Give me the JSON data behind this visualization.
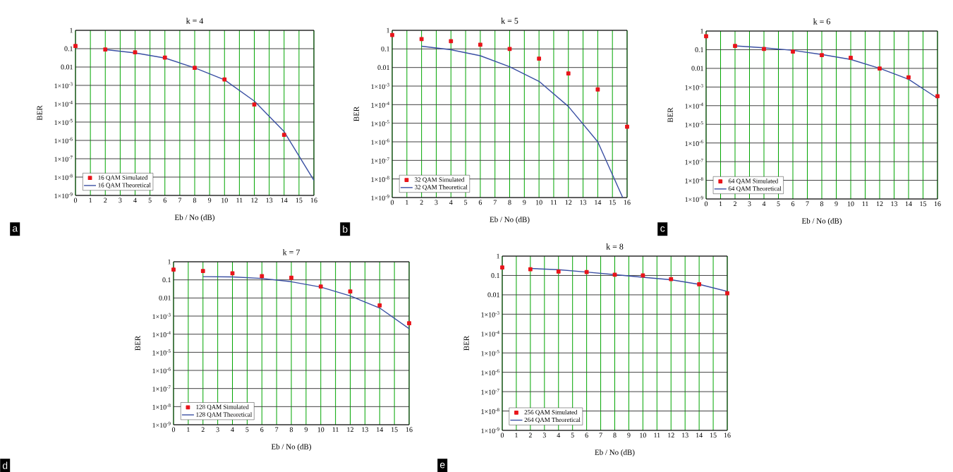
{
  "chart_data": [
    {
      "type": "line",
      "title": "k = 4",
      "xlabel": "Eb / No (dB)",
      "ylabel": "BER",
      "xlim": [
        0,
        16
      ],
      "xticks": [
        0,
        1,
        2,
        3,
        4,
        5,
        6,
        7,
        8,
        9,
        10,
        11,
        12,
        13,
        14,
        15,
        16
      ],
      "ylim": [
        1e-09,
        1
      ],
      "yticks": [
        1,
        0.1,
        0.01,
        {
          "value": 0.001,
          "label": "1×10$^{-3}$"
        },
        {
          "value": 0.0001,
          "label": "1×10$^{-4}$"
        },
        {
          "value": 1e-05,
          "label": "1×10$^{-5}$"
        },
        {
          "value": 1e-06,
          "label": "1×10$^{-6}$"
        },
        {
          "value": 1e-07,
          "label": "1×10$^{-7}$"
        },
        {
          "value": 1e-08,
          "label": "1×10$^{-8}$"
        },
        {
          "value": 1e-09,
          "label": "1×10$^{-9}$"
        }
      ],
      "log": "y",
      "grid": true,
      "legend": "bottom left",
      "annotations": [
        "a"
      ],
      "series": [
        {
          "name": "16 QAM  Simulated",
          "type": "scatter",
          "marker": "square",
          "color": "#e8151b",
          "x": [
            0,
            2,
            4,
            6,
            8,
            10,
            12,
            14
          ],
          "values": [
            0.14,
            0.09,
            0.063,
            0.033,
            0.009,
            0.0021,
            9e-05,
            2e-06
          ]
        },
        {
          "name": "16 QAM  Theoretical",
          "type": "line",
          "marker": "none",
          "color": "#3a4fa3",
          "x": [
            2,
            4,
            6,
            8,
            10,
            12,
            14,
            16
          ],
          "values": [
            0.09,
            0.059,
            0.031,
            0.009,
            0.002,
            0.00014,
            3e-06,
            6.6e-09
          ]
        }
      ]
    },
    {
      "type": "line",
      "title": "k = 5",
      "xlabel": "Eb / No (dB)",
      "ylabel": "BER",
      "xlim": [
        0,
        16
      ],
      "xticks": [
        0,
        1,
        2,
        3,
        4,
        5,
        6,
        7,
        8,
        9,
        10,
        11,
        12,
        13,
        14,
        15,
        16
      ],
      "ylim": [
        1e-09,
        1
      ],
      "yticks": [
        1,
        0.1,
        0.01,
        {
          "value": 0.001,
          "label": "1×10$^{-3}$"
        },
        {
          "value": 0.0001,
          "label": "1×10$^{-4}$"
        },
        {
          "value": 1e-05,
          "label": "1×10$^{-5}$"
        },
        {
          "value": 1e-06,
          "label": "1×10$^{-6}$"
        },
        {
          "value": 1e-07,
          "label": "1×10$^{-7}$"
        },
        {
          "value": 1e-08,
          "label": "1×10$^{-8}$"
        },
        {
          "value": 1e-09,
          "label": "1×10$^{-9}$"
        }
      ],
      "log": "y",
      "grid": true,
      "legend": "bottom left",
      "annotations": [
        "b"
      ],
      "series": [
        {
          "name": "32 QAM  Simulated",
          "type": "scatter",
          "marker": "square",
          "color": "#e8151b",
          "x": [
            0,
            2,
            4,
            6,
            8,
            10,
            12,
            14,
            16
          ],
          "values": [
            0.56,
            0.34,
            0.26,
            0.17,
            0.1,
            0.03,
            0.0048,
            0.00066,
            6.5e-06
          ]
        },
        {
          "name": "32  QAM  Theoretical",
          "type": "line",
          "marker": "none",
          "color": "#3a4fa3",
          "x": [
            2,
            4,
            6,
            8,
            10,
            12,
            14,
            15.7
          ],
          "values": [
            0.14,
            0.09,
            0.043,
            0.011,
            0.0018,
            8e-05,
            1e-06,
            1e-09
          ]
        }
      ]
    },
    {
      "type": "line",
      "title": "k = 6",
      "xlabel": "Eb / No (dB)",
      "ylabel": "BER",
      "xlim": [
        0,
        16
      ],
      "xticks": [
        0,
        1,
        2,
        3,
        4,
        5,
        6,
        7,
        8,
        9,
        10,
        11,
        12,
        13,
        14,
        15,
        16
      ],
      "ylim": [
        1e-09,
        1
      ],
      "yticks": [
        1,
        0.1,
        0.01,
        {
          "value": 0.001,
          "label": "1×10$^{-3}$"
        },
        {
          "value": 0.0001,
          "label": "1×10$^{-4}$"
        },
        {
          "value": 1e-05,
          "label": "1×10$^{-5}$"
        },
        {
          "value": 1e-06,
          "label": "1×10$^{-6}$"
        },
        {
          "value": 1e-07,
          "label": "1×10$^{-7}$"
        },
        {
          "value": 1e-08,
          "label": "1×10$^{-8}$"
        },
        {
          "value": 1e-09,
          "label": "1×10$^{-9}$"
        }
      ],
      "log": "y",
      "grid": true,
      "legend": "bottom left",
      "annotations": [
        "c"
      ],
      "series": [
        {
          "name": "64 QAM  Simulated",
          "type": "scatter",
          "marker": "square",
          "color": "#e8151b",
          "x": [
            0,
            2,
            4,
            6,
            8,
            10,
            12,
            14,
            16
          ],
          "values": [
            0.53,
            0.16,
            0.11,
            0.079,
            0.051,
            0.037,
            0.0098,
            0.0033,
            0.00032
          ]
        },
        {
          "name": "64 QAM  Theoretical",
          "type": "line",
          "marker": "none",
          "color": "#3a4fa3",
          "x": [
            2,
            4,
            6,
            8,
            10,
            12,
            14,
            16
          ],
          "values": [
            0.16,
            0.126,
            0.092,
            0.055,
            0.03,
            0.01,
            0.0026,
            0.00025
          ]
        }
      ]
    },
    {
      "type": "line",
      "title": "k = 7",
      "xlabel": "Eb / No (dB)",
      "ylabel": "BER",
      "xlim": [
        0,
        16
      ],
      "xticks": [
        0,
        1,
        2,
        3,
        4,
        5,
        6,
        7,
        8,
        9,
        10,
        11,
        12,
        13,
        14,
        15,
        16
      ],
      "ylim": [
        1e-09,
        1
      ],
      "yticks": [
        1,
        0.1,
        0.01,
        {
          "value": 0.001,
          "label": "1×10$^{-3}$"
        },
        {
          "value": 0.0001,
          "label": "1×10$^{-4}$"
        },
        {
          "value": 1e-05,
          "label": "1×10$^{-5}$"
        },
        {
          "value": 1e-06,
          "label": "1×10$^{-6}$"
        },
        {
          "value": 1e-07,
          "label": "1×10$^{-7}$"
        },
        {
          "value": 1e-08,
          "label": "1×10$^{-8}$"
        },
        {
          "value": 1e-09,
          "label": "1×10$^{-9}$"
        }
      ],
      "log": "y",
      "grid": true,
      "legend": "bottom left",
      "annotations": [
        "d"
      ],
      "series": [
        {
          "name": "128 QAM  Simulated",
          "type": "scatter",
          "marker": "square",
          "color": "#e8151b",
          "x": [
            0,
            2,
            4,
            6,
            8,
            10,
            12,
            14,
            16
          ],
          "values": [
            0.37,
            0.31,
            0.23,
            0.16,
            0.13,
            0.043,
            0.023,
            0.0039,
            0.0004
          ]
        },
        {
          "name": "128 QAM  Theoretical",
          "type": "line",
          "marker": "none",
          "color": "#3a4fa3",
          "x": [
            2,
            4,
            6,
            8,
            10,
            12,
            14,
            16
          ],
          "values": [
            0.15,
            0.145,
            0.12,
            0.079,
            0.04,
            0.013,
            0.0028,
            0.0002
          ]
        }
      ]
    },
    {
      "type": "line",
      "title": "k = 8",
      "xlabel": "Eb / No (dB)",
      "ylabel": "BER",
      "xlim": [
        0,
        16
      ],
      "xticks": [
        0,
        1,
        2,
        3,
        4,
        5,
        6,
        7,
        8,
        9,
        10,
        11,
        12,
        13,
        14,
        15,
        16
      ],
      "ylim": [
        1e-09,
        1
      ],
      "yticks": [
        1,
        0.1,
        0.01,
        {
          "value": 0.001,
          "label": "1×10$^{-3}$"
        },
        {
          "value": 0.0001,
          "label": "1×10$^{-4}$"
        },
        {
          "value": 1e-05,
          "label": "1×10$^{-5}$"
        },
        {
          "value": 1e-06,
          "label": "1×10$^{-6}$"
        },
        {
          "value": 1e-07,
          "label": "1×10$^{-7}$"
        },
        {
          "value": 1e-08,
          "label": "1×10$^{-8}$"
        },
        {
          "value": 1e-09,
          "label": "1×10$^{-9}$"
        }
      ],
      "log": "y",
      "grid": true,
      "legend": "bottom left",
      "annotations": [
        "e"
      ],
      "series": [
        {
          "name": "256 QAM  Simulated",
          "type": "scatter",
          "marker": "square",
          "color": "#e8151b",
          "x": [
            0,
            2,
            4,
            6,
            8,
            10,
            12,
            14,
            16
          ],
          "values": [
            0.26,
            0.21,
            0.16,
            0.15,
            0.11,
            0.1,
            0.065,
            0.035,
            0.012
          ]
        },
        {
          "name": "264 QAM  Theoretical",
          "type": "line",
          "marker": "none",
          "color": "#3a4fa3",
          "x": [
            2,
            4,
            6,
            8,
            10,
            12,
            14,
            16
          ],
          "values": [
            0.23,
            0.2,
            0.15,
            0.11,
            0.081,
            0.06,
            0.035,
            0.015
          ]
        }
      ]
    }
  ]
}
